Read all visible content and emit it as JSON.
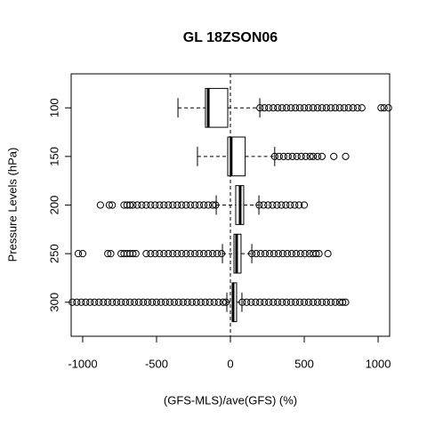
{
  "chart_data": {
    "type": "boxplot",
    "orientation": "horizontal",
    "title": "GL 18ZSON06",
    "x_label": "(GFS-MLS)/ave(GFS) (%)",
    "y_label": "Pressure Levels (hPa)",
    "categories": [
      "100",
      "150",
      "200",
      "250",
      "300"
    ],
    "xlim": [
      -1078,
      1078
    ],
    "xticks": [
      -1000,
      -500,
      0,
      500,
      1000
    ],
    "reference_line": 0,
    "color": "#000000",
    "boxes": [
      {
        "whislo": -355,
        "q1": -169,
        "med": -150,
        "q3": -18,
        "whishi": 199,
        "outliers": [
          200,
          230,
          260,
          290,
          320,
          350,
          380,
          410,
          440,
          470,
          500,
          530,
          560,
          590,
          620,
          650,
          680,
          710,
          740,
          770,
          800,
          830,
          860,
          890,
          1020,
          1040,
          1070
        ]
      },
      {
        "whislo": -223,
        "q1": -18,
        "med": 5,
        "q3": 100,
        "whishi": 300,
        "outliers": [
          300,
          330,
          360,
          390,
          420,
          450,
          480,
          510,
          540,
          560,
          590,
          620,
          700,
          780
        ]
      },
      {
        "whislo": -96,
        "q1": 36,
        "med": 66,
        "q3": 90,
        "whishi": 193,
        "outliers": [
          -880,
          -820,
          -800,
          -720,
          -700,
          -680,
          -660,
          -630,
          -600,
          -570,
          -540,
          -510,
          -480,
          -450,
          -420,
          -390,
          -360,
          -330,
          -300,
          -270,
          -240,
          -210,
          -180,
          -150,
          -120,
          -100,
          195,
          225,
          255,
          285,
          315,
          345,
          375,
          405,
          435,
          465,
          500
        ]
      },
      {
        "whislo": -54,
        "q1": 24,
        "med": 42,
        "q3": 72,
        "whishi": 145,
        "outliers": [
          -1030,
          -1000,
          -830,
          -810,
          -740,
          -720,
          -700,
          -680,
          -660,
          -640,
          -570,
          -540,
          -510,
          -480,
          -450,
          -420,
          -390,
          -360,
          -330,
          -300,
          -270,
          -240,
          -210,
          -180,
          -150,
          -120,
          -90,
          -60,
          145,
          175,
          205,
          235,
          265,
          295,
          325,
          355,
          385,
          415,
          445,
          475,
          505,
          535,
          560,
          580,
          600,
          660
        ]
      },
      {
        "whislo": -24,
        "q1": 12,
        "med": 18,
        "q3": 42,
        "whishi": 78,
        "outliers": [
          -1070,
          -1040,
          -1010,
          -980,
          -950,
          -920,
          -890,
          -860,
          -830,
          -800,
          -770,
          -740,
          -710,
          -680,
          -650,
          -620,
          -590,
          -560,
          -530,
          -500,
          -470,
          -440,
          -410,
          -380,
          -350,
          -320,
          -290,
          -260,
          -230,
          -200,
          -170,
          -140,
          -110,
          -80,
          -50,
          -30,
          80,
          110,
          140,
          170,
          200,
          230,
          260,
          290,
          320,
          350,
          380,
          410,
          440,
          470,
          500,
          530,
          560,
          590,
          620,
          650,
          680,
          710,
          740,
          760,
          780
        ]
      }
    ]
  }
}
